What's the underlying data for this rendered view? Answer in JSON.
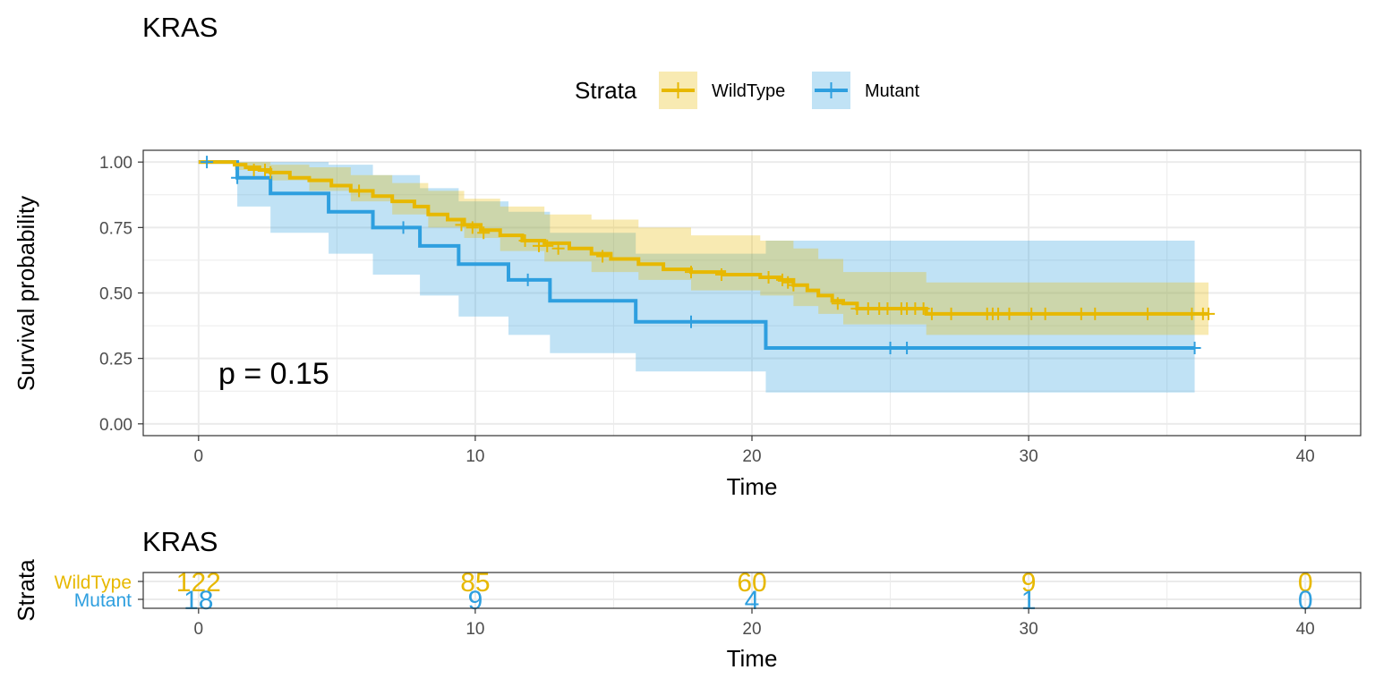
{
  "colors": {
    "wildtype": "#E7B800",
    "mutant": "#2E9FDF",
    "grid": "#ebebeb",
    "panel_border": "#333333"
  },
  "chart_data": [
    {
      "type": "line",
      "subtype": "kaplan-meier",
      "title": "KRAS",
      "xlabel": "Time",
      "ylabel": "Survival probability",
      "xlim": [
        -2,
        42
      ],
      "ylim": [
        -0.045,
        1.045
      ],
      "x_ticks": [
        "0",
        "10",
        "20",
        "30",
        "40"
      ],
      "y_ticks": [
        "0.00",
        "0.25",
        "0.50",
        "0.75",
        "1.00"
      ],
      "grid": true,
      "legend": {
        "title": "Strata",
        "position": "top",
        "entries": [
          "WildType",
          "Mutant"
        ]
      },
      "annotation": "p = 0.15",
      "series": [
        {
          "name": "WildType",
          "color": "#E7B800",
          "x": [
            0,
            1.3,
            1.7,
            2.2,
            2.6,
            3.3,
            4.0,
            4.8,
            5.5,
            6.3,
            7.0,
            7.8,
            8.3,
            9.0,
            9.6,
            10.2,
            10.9,
            11.7,
            12.5,
            13.4,
            14.2,
            14.9,
            15.9,
            16.8,
            17.8,
            19.0,
            20.3,
            21.0,
            21.5,
            22.0,
            22.4,
            22.9,
            23.3,
            23.8,
            26.3,
            36.5
          ],
          "y": [
            1.0,
            0.99,
            0.98,
            0.97,
            0.96,
            0.94,
            0.93,
            0.91,
            0.89,
            0.87,
            0.85,
            0.83,
            0.8,
            0.78,
            0.76,
            0.74,
            0.72,
            0.7,
            0.69,
            0.67,
            0.65,
            0.63,
            0.61,
            0.59,
            0.58,
            0.57,
            0.56,
            0.55,
            0.53,
            0.51,
            0.49,
            0.47,
            0.46,
            0.44,
            0.42,
            0.42
          ],
          "ci_x": [
            0,
            1.3,
            2.6,
            4.0,
            5.5,
            7.0,
            8.3,
            9.6,
            10.9,
            12.5,
            14.2,
            15.9,
            17.8,
            20.3,
            21.5,
            22.4,
            23.3,
            26.3,
            36.5
          ],
          "ci_lower": [
            1.0,
            0.97,
            0.93,
            0.89,
            0.85,
            0.8,
            0.75,
            0.71,
            0.66,
            0.62,
            0.58,
            0.55,
            0.51,
            0.49,
            0.45,
            0.42,
            0.38,
            0.34,
            0.34
          ],
          "ci_upper": [
            1.0,
            1.0,
            0.99,
            0.98,
            0.95,
            0.92,
            0.89,
            0.86,
            0.83,
            0.8,
            0.78,
            0.75,
            0.72,
            0.7,
            0.67,
            0.63,
            0.58,
            0.54,
            0.54
          ],
          "censor_x": [
            2.0,
            2.4,
            2.6,
            5.8,
            9.5,
            9.9,
            10.3,
            11.8,
            12.3,
            12.6,
            13.0,
            14.6,
            17.8,
            18.9,
            20.6,
            21.1,
            21.3,
            21.5,
            23.1,
            23.8,
            24.2,
            24.6,
            24.9,
            25.4,
            25.6,
            25.9,
            26.2,
            26.5,
            27.2,
            28.5,
            28.7,
            28.9,
            29.3,
            30.1,
            30.6,
            31.9,
            32.4,
            34.3,
            35.9,
            36.3,
            36.5
          ],
          "censor_y": [
            0.97,
            0.97,
            0.96,
            0.89,
            0.76,
            0.75,
            0.73,
            0.7,
            0.68,
            0.68,
            0.67,
            0.64,
            0.58,
            0.57,
            0.56,
            0.55,
            0.54,
            0.53,
            0.46,
            0.44,
            0.44,
            0.44,
            0.44,
            0.44,
            0.44,
            0.44,
            0.44,
            0.42,
            0.42,
            0.42,
            0.42,
            0.42,
            0.42,
            0.42,
            0.42,
            0.42,
            0.42,
            0.42,
            0.42,
            0.42,
            0.42
          ]
        },
        {
          "name": "Mutant",
          "color": "#2E9FDF",
          "x": [
            0,
            1.4,
            2.6,
            4.7,
            6.3,
            8.0,
            9.4,
            11.2,
            12.7,
            15.8,
            20.5,
            36.0
          ],
          "y": [
            1.0,
            0.94,
            0.88,
            0.81,
            0.75,
            0.68,
            0.61,
            0.55,
            0.47,
            0.39,
            0.29,
            0.29
          ],
          "ci_lower": [
            1.0,
            0.83,
            0.73,
            0.65,
            0.57,
            0.49,
            0.41,
            0.34,
            0.27,
            0.2,
            0.12,
            0.12
          ],
          "ci_upper": [
            1.0,
            1.0,
            1.0,
            0.99,
            0.95,
            0.9,
            0.85,
            0.81,
            0.73,
            0.65,
            0.7,
            0.7
          ],
          "censor_x": [
            0.3,
            1.4,
            7.4,
            11.9,
            17.8,
            25.0,
            25.6,
            36.0
          ],
          "censor_y": [
            1.0,
            0.94,
            0.75,
            0.55,
            0.39,
            0.29,
            0.29,
            0.29
          ]
        }
      ]
    },
    {
      "type": "table",
      "title": "KRAS",
      "xlabel": "Time",
      "ylabel": "Strata",
      "xlim": [
        -2,
        42
      ],
      "x_ticks": [
        "0",
        "10",
        "20",
        "30",
        "40"
      ],
      "times": [
        0,
        10,
        20,
        30,
        40
      ],
      "rows": [
        {
          "name": "WildType",
          "color": "#E7B800",
          "counts": [
            "122",
            "85",
            "60",
            "9",
            "0"
          ]
        },
        {
          "name": "Mutant",
          "color": "#2E9FDF",
          "counts": [
            "18",
            "9",
            "4",
            "1",
            "0"
          ]
        }
      ]
    }
  ]
}
